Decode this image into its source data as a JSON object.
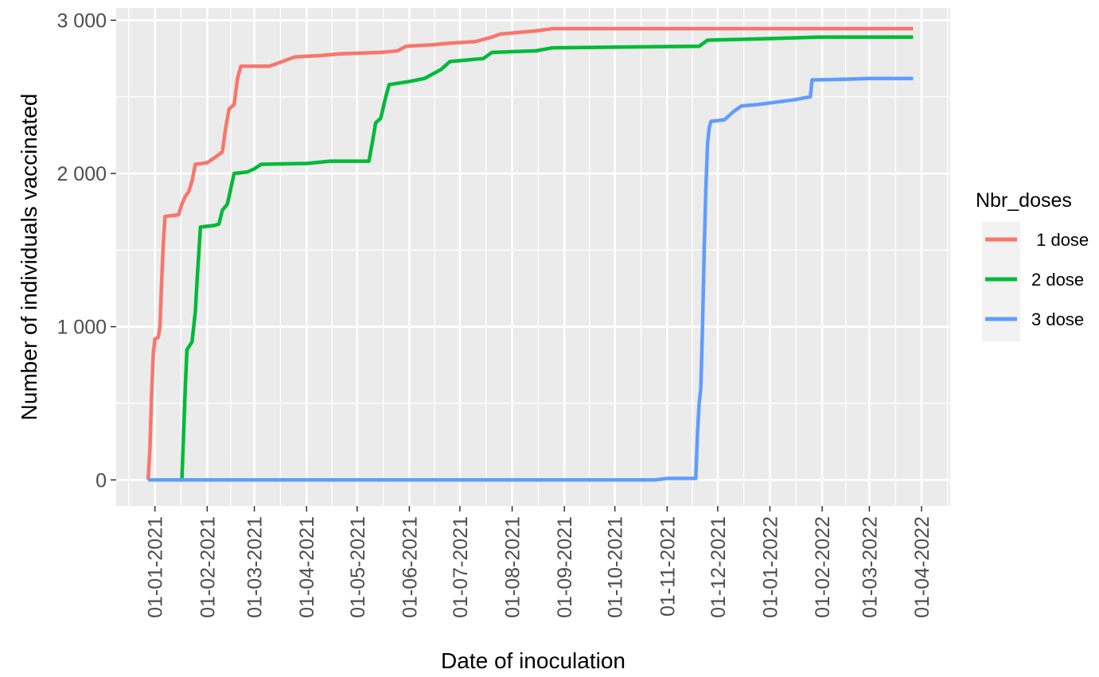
{
  "chart_data": {
    "type": "line",
    "xlabel": "Date of inoculation",
    "ylabel": "Number of individuals vaccinated",
    "xlim": [
      "2020-12-09",
      "2022-04-18"
    ],
    "ylim": [
      -170,
      3080
    ],
    "x_ticks": [
      "2021-01-01",
      "2021-02-01",
      "2021-03-01",
      "2021-04-01",
      "2021-05-01",
      "2021-06-01",
      "2021-07-01",
      "2021-08-01",
      "2021-09-01",
      "2021-10-01",
      "2021-11-01",
      "2021-12-01",
      "2022-01-01",
      "2022-02-01",
      "2022-03-01",
      "2022-04-01"
    ],
    "x_tick_labels": [
      "01-01-2021",
      "01-02-2021",
      "01-03-2021",
      "01-04-2021",
      "01-05-2021",
      "01-06-2021",
      "01-07-2021",
      "01-08-2021",
      "01-09-2021",
      "01-10-2021",
      "01-11-2021",
      "01-12-2021",
      "01-01-2022",
      "01-02-2022",
      "01-03-2022",
      "01-04-2022"
    ],
    "y_ticks": [
      0,
      1000,
      2000,
      3000
    ],
    "y_tick_labels": [
      "0",
      "1 000",
      "2 000",
      "3 000"
    ],
    "grid": true,
    "legend": {
      "title": "Nbr_doses",
      "position": "right"
    },
    "series": [
      {
        "name": " 1 dose",
        "color": "#F8766D",
        "points": [
          [
            "2020-12-28",
            0
          ],
          [
            "2020-12-29",
            200
          ],
          [
            "2020-12-30",
            550
          ],
          [
            "2020-12-31",
            820
          ],
          [
            "2021-01-01",
            920
          ],
          [
            "2021-01-03",
            930
          ],
          [
            "2021-01-04",
            1000
          ],
          [
            "2021-01-05",
            1300
          ],
          [
            "2021-01-06",
            1550
          ],
          [
            "2021-01-07",
            1720
          ],
          [
            "2021-01-15",
            1730
          ],
          [
            "2021-01-17",
            1800
          ],
          [
            "2021-01-19",
            1850
          ],
          [
            "2021-01-21",
            1880
          ],
          [
            "2021-01-23",
            1950
          ],
          [
            "2021-01-25",
            2060
          ],
          [
            "2021-02-01",
            2070
          ],
          [
            "2021-02-05",
            2100
          ],
          [
            "2021-02-10",
            2140
          ],
          [
            "2021-02-12",
            2300
          ],
          [
            "2021-02-14",
            2420
          ],
          [
            "2021-02-17",
            2450
          ],
          [
            "2021-02-19",
            2620
          ],
          [
            "2021-02-21",
            2700
          ],
          [
            "2021-03-05",
            2700
          ],
          [
            "2021-03-10",
            2700
          ],
          [
            "2021-03-15",
            2720
          ],
          [
            "2021-03-20",
            2740
          ],
          [
            "2021-03-25",
            2760
          ],
          [
            "2021-04-10",
            2770
          ],
          [
            "2021-04-20",
            2780
          ],
          [
            "2021-05-15",
            2790
          ],
          [
            "2021-05-25",
            2800
          ],
          [
            "2021-05-30",
            2830
          ],
          [
            "2021-06-15",
            2840
          ],
          [
            "2021-06-25",
            2850
          ],
          [
            "2021-07-10",
            2860
          ],
          [
            "2021-07-20",
            2890
          ],
          [
            "2021-07-25",
            2910
          ],
          [
            "2021-08-15",
            2930
          ],
          [
            "2021-08-25",
            2945
          ],
          [
            "2021-09-10",
            2945
          ],
          [
            "2022-03-27",
            2945
          ]
        ]
      },
      {
        "name": "2 dose",
        "color": "#00BA38",
        "points": [
          [
            "2021-01-17",
            0
          ],
          [
            "2021-01-18",
            300
          ],
          [
            "2021-01-19",
            600
          ],
          [
            "2021-01-20",
            850
          ],
          [
            "2021-01-23",
            900
          ],
          [
            "2021-01-25",
            1100
          ],
          [
            "2021-01-26",
            1300
          ],
          [
            "2021-01-28",
            1650
          ],
          [
            "2021-02-05",
            1660
          ],
          [
            "2021-02-08",
            1670
          ],
          [
            "2021-02-10",
            1760
          ],
          [
            "2021-02-13",
            1800
          ],
          [
            "2021-02-15",
            1900
          ],
          [
            "2021-02-17",
            2000
          ],
          [
            "2021-02-25",
            2010
          ],
          [
            "2021-03-01",
            2030
          ],
          [
            "2021-03-05",
            2060
          ],
          [
            "2021-04-01",
            2065
          ],
          [
            "2021-04-15",
            2080
          ],
          [
            "2021-05-08",
            2080
          ],
          [
            "2021-05-10",
            2200
          ],
          [
            "2021-05-12",
            2330
          ],
          [
            "2021-05-15",
            2360
          ],
          [
            "2021-05-18",
            2500
          ],
          [
            "2021-05-20",
            2580
          ],
          [
            "2021-06-01",
            2600
          ],
          [
            "2021-06-10",
            2620
          ],
          [
            "2021-06-20",
            2680
          ],
          [
            "2021-06-25",
            2730
          ],
          [
            "2021-07-15",
            2750
          ],
          [
            "2021-07-20",
            2790
          ],
          [
            "2021-08-15",
            2800
          ],
          [
            "2021-08-25",
            2820
          ],
          [
            "2021-11-20",
            2830
          ],
          [
            "2021-11-25",
            2870
          ],
          [
            "2022-01-01",
            2880
          ],
          [
            "2022-01-30",
            2890
          ],
          [
            "2022-03-27",
            2890
          ]
        ]
      },
      {
        "name": "3 dose",
        "color": "#619CFF",
        "points": [
          [
            "2020-12-28",
            0
          ],
          [
            "2021-10-25",
            0
          ],
          [
            "2021-11-01",
            10
          ],
          [
            "2021-11-18",
            10
          ],
          [
            "2021-11-19",
            300
          ],
          [
            "2021-11-20",
            500
          ],
          [
            "2021-11-21",
            600
          ],
          [
            "2021-11-22",
            1000
          ],
          [
            "2021-11-23",
            1500
          ],
          [
            "2021-11-24",
            1900
          ],
          [
            "2021-11-25",
            2200
          ],
          [
            "2021-11-26",
            2300
          ],
          [
            "2021-11-27",
            2340
          ],
          [
            "2021-12-05",
            2350
          ],
          [
            "2021-12-10",
            2400
          ],
          [
            "2021-12-15",
            2440
          ],
          [
            "2021-12-25",
            2450
          ],
          [
            "2022-01-01",
            2460
          ],
          [
            "2022-01-15",
            2480
          ],
          [
            "2022-01-25",
            2500
          ],
          [
            "2022-01-26",
            2610
          ],
          [
            "2022-02-15",
            2615
          ],
          [
            "2022-03-01",
            2620
          ],
          [
            "2022-03-27",
            2620
          ]
        ]
      }
    ]
  }
}
